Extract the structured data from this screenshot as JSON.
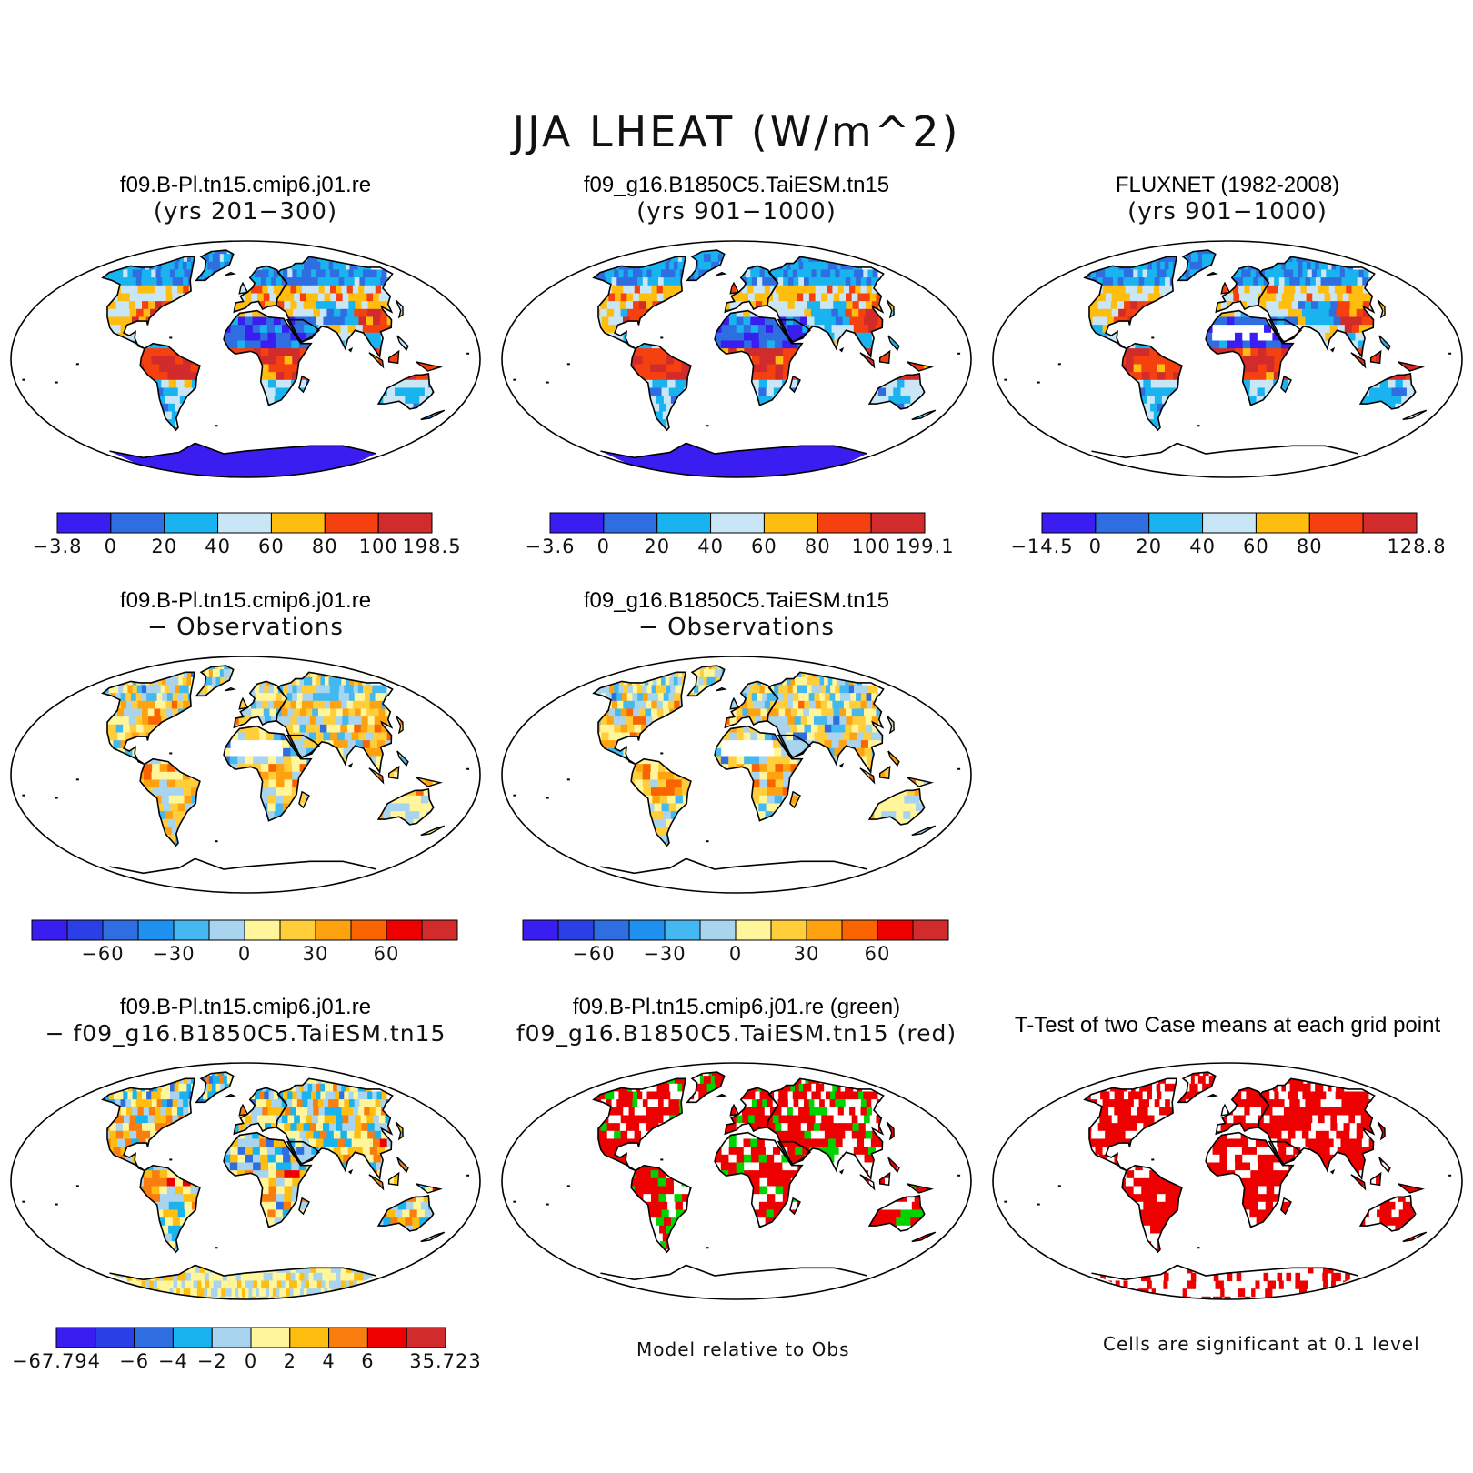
{
  "title": "JJA LHEAT (W/m^2)",
  "colors": {
    "ocean": "#ffffff",
    "coast": "#000000",
    "green_sig": "#00d400",
    "red_sig": "#ee0000"
  },
  "panels": [
    {
      "title": "f09.B-Pl.tn15.cmip6.j01.re",
      "subtitle": "(yrs 201−300)",
      "kind": "field",
      "palette": "abs",
      "antarctica": "#3a1df0"
    },
    {
      "title": "f09_g16.B1850C5.TaiESM.tn15",
      "subtitle": "(yrs 901−1000)",
      "kind": "field",
      "palette": "abs",
      "antarctica": "#3a1df0"
    },
    {
      "title": "FLUXNET (1982-2008)",
      "subtitle": "(yrs 901−1000)",
      "kind": "field",
      "palette": "abs_obs",
      "antarctica": "none"
    },
    {
      "title": "f09.B-Pl.tn15.cmip6.j01.re",
      "subtitle": "− Observations",
      "kind": "field",
      "palette": "diff_obs",
      "antarctica": "none"
    },
    {
      "title": "f09_g16.B1850C5.TaiESM.tn15",
      "subtitle": "− Observations",
      "kind": "field",
      "palette": "diff_obs",
      "antarctica": "none"
    },
    {
      "title": "f09.B-Pl.tn15.cmip6.j01.re",
      "subtitle": "− f09_g16.B1850C5.TaiESM.tn15",
      "kind": "field",
      "palette": "diff_case",
      "antarctica": "#fff59a"
    },
    {
      "title": "f09.B-Pl.tn15.cmip6.j01.re (green)",
      "subtitle": "f09_g16.B1850C5.TaiESM.tn15 (red)",
      "kind": "compare",
      "palette": "sig",
      "antarctica": "none"
    },
    {
      "title": "T-Test of two Case means at each grid point",
      "subtitle": "",
      "kind": "ttest",
      "palette": "sig",
      "antarctica": "sparse"
    }
  ],
  "colorbars": [
    {
      "colors": [
        "#3a1df0",
        "#2e6ee0",
        "#19b4f0",
        "#c8e6f5",
        "#ffbe0f",
        "#f5400f",
        "#d22b2b"
      ],
      "labels": [
        "−3.8",
        "0",
        "20",
        "40",
        "60",
        "80",
        "100",
        "198.5"
      ]
    },
    {
      "colors": [
        "#3a1df0",
        "#2e6ee0",
        "#19b4f0",
        "#c8e6f5",
        "#ffbe0f",
        "#f5400f",
        "#d22b2b"
      ],
      "labels": [
        "−3.6",
        "0",
        "20",
        "40",
        "60",
        "80",
        "100",
        "199.1"
      ]
    },
    {
      "colors": [
        "#3a1df0",
        "#2e6ee0",
        "#19b4f0",
        "#c8e6f5",
        "#ffbe0f",
        "#f5400f",
        "#d22b2b"
      ],
      "labels": [
        "−14.5",
        "0",
        "20",
        "40",
        "60",
        "80",
        "",
        "128.8"
      ]
    },
    {
      "colors": [
        "#3a1df0",
        "#2b3fe6",
        "#2e6ee0",
        "#1e90f0",
        "#44b8f0",
        "#a8d4f0",
        "#fff59a",
        "#ffce3a",
        "#ffa20f",
        "#fa6400",
        "#ee0000",
        "#d22b2b"
      ],
      "labels": [
        "",
        "",
        "−60",
        "",
        "−30",
        "",
        "0",
        "",
        "30",
        "",
        "60",
        "",
        ""
      ]
    },
    {
      "colors": [
        "#3a1df0",
        "#2b3fe6",
        "#2e6ee0",
        "#1e90f0",
        "#44b8f0",
        "#a8d4f0",
        "#fff59a",
        "#ffce3a",
        "#ffa20f",
        "#fa6400",
        "#ee0000",
        "#d22b2b"
      ],
      "labels": [
        "",
        "",
        "−60",
        "",
        "−30",
        "",
        "0",
        "",
        "30",
        "",
        "60",
        "",
        ""
      ]
    },
    {
      "colors": [
        "#3a1df0",
        "#2b3fe6",
        "#2e6ee0",
        "#19b4f0",
        "#a8d4f0",
        "#fff59a",
        "#ffbe0f",
        "#fa7d0f",
        "#ee0000",
        "#d22b2b"
      ],
      "labels": [
        "−67.794",
        "",
        "−6",
        "−4",
        "−2",
        "0",
        "2",
        "4",
        "6",
        "",
        "35.723"
      ]
    }
  ],
  "notes": [
    "Model relative to Obs",
    "Cells are significant at 0.1 level"
  ],
  "chart_data": [
    {
      "type": "heatmap",
      "panel": 1,
      "title": "f09.B-Pl.tn15.cmip6.j01.re (yrs 201-300)",
      "levels": [
        -3.8,
        0,
        20,
        40,
        60,
        80,
        100,
        198.5
      ]
    },
    {
      "type": "heatmap",
      "panel": 2,
      "title": "f09_g16.B1850C5.TaiESM.tn15 (yrs 901-1000)",
      "levels": [
        -3.6,
        0,
        20,
        40,
        60,
        80,
        100,
        199.1
      ]
    },
    {
      "type": "heatmap",
      "panel": 3,
      "title": "FLUXNET (1982-2008) (yrs 901-1000)",
      "levels": [
        -14.5,
        0,
        20,
        40,
        60,
        80,
        128.8
      ]
    },
    {
      "type": "heatmap",
      "panel": 4,
      "title": "f09.B-Pl.tn15.cmip6.j01.re - Observations",
      "tick_labels": [
        -60,
        -30,
        0,
        30,
        60
      ]
    },
    {
      "type": "heatmap",
      "panel": 5,
      "title": "f09_g16.B1850C5.TaiESM.tn15 - Observations",
      "tick_labels": [
        -60,
        -30,
        0,
        30,
        60
      ]
    },
    {
      "type": "heatmap",
      "panel": 6,
      "title": "f09.B-Pl.tn15.cmip6.j01.re - f09_g16.B1850C5.TaiESM.tn15",
      "levels": [
        -67.794,
        -6,
        -4,
        -2,
        0,
        2,
        4,
        6,
        35.723
      ]
    },
    {
      "type": "heatmap",
      "panel": 7,
      "title": "f09.B-Pl.tn15.cmip6.j01.re (green) / f09_g16.B1850C5.TaiESM.tn15 (red)",
      "legend": "Model relative to Obs"
    },
    {
      "type": "heatmap",
      "panel": 8,
      "title": "T-Test of two Case means at each grid point",
      "legend": "Cells are significant at 0.1 level"
    }
  ]
}
